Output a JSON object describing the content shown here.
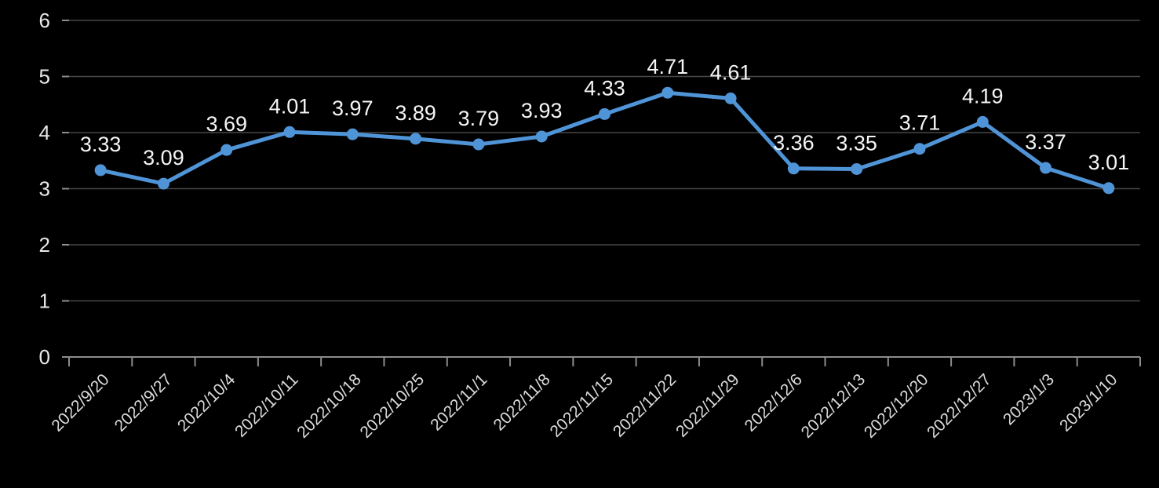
{
  "chart": {
    "background_color": "#000000",
    "line_color": "#5094D8",
    "marker_color": "#5094D8",
    "gridline_color": "#474747",
    "axis_line_color": "#8C8C8C",
    "tick_color": "#8C8C8C",
    "y_label_color": "#E8E8E8",
    "x_label_color": "#DCDCDC",
    "data_label_color": "#F5F5F5"
  },
  "chart_data": {
    "type": "line",
    "categories": [
      "2022/9/20",
      "2022/9/27",
      "2022/10/4",
      "2022/10/11",
      "2022/10/18",
      "2022/10/25",
      "2022/11/1",
      "2022/11/8",
      "2022/11/15",
      "2022/11/22",
      "2022/11/29",
      "2022/12/6",
      "2022/12/13",
      "2022/12/20",
      "2022/12/27",
      "2023/1/3",
      "2023/1/10"
    ],
    "values": [
      3.33,
      3.09,
      3.69,
      4.01,
      3.97,
      3.89,
      3.79,
      3.93,
      4.33,
      4.71,
      4.61,
      3.36,
      3.35,
      3.71,
      4.19,
      3.37,
      3.01
    ],
    "data_labels": [
      "3.33",
      "3.09",
      "3.69",
      "4.01",
      "3.97",
      "3.89",
      "3.79",
      "3.93",
      "4.33",
      "4.71",
      "4.61",
      "3.36",
      "3.35",
      "3.71",
      "4.19",
      "3.37",
      "3.01"
    ],
    "title": "",
    "xlabel": "",
    "ylabel": "",
    "ylim": [
      0,
      6
    ],
    "yticks": [
      0,
      1,
      2,
      3,
      4,
      5,
      6
    ],
    "grid": true,
    "legend": "none",
    "marker": "circle",
    "x_tick_label_rotation_deg": 45
  }
}
